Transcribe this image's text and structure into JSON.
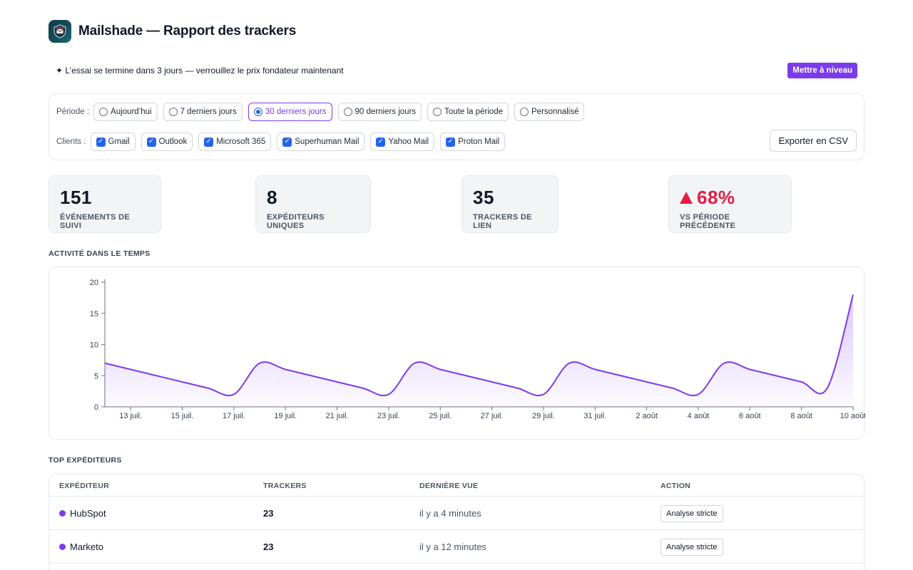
{
  "header": {
    "title": "Mailshade — Rapport des trackers",
    "logo_icon": "shield-envelope-icon"
  },
  "banner": {
    "text": "✦ L’essai se termine dans 3 jours — verrouillez le prix fondateur maintenant",
    "upgrade_label": "Mettre à niveau",
    "accent": "#7c3aed"
  },
  "filters": {
    "period_label": "Période :",
    "periods": [
      {
        "label": "Aujourd’hui",
        "selected": false
      },
      {
        "label": "7 derniers jours",
        "selected": false
      },
      {
        "label": "30 derniers jours",
        "selected": true
      },
      {
        "label": "90 derniers jours",
        "selected": false
      },
      {
        "label": "Toute la période",
        "selected": false
      },
      {
        "label": "Personnalisé",
        "selected": false
      }
    ],
    "clients_label": "Clients :",
    "clients": [
      {
        "label": "Gmail",
        "checked": true
      },
      {
        "label": "Outlook",
        "checked": true
      },
      {
        "label": "Microsoft 365",
        "checked": true
      },
      {
        "label": "Superhuman Mail",
        "checked": true
      },
      {
        "label": "Yahoo Mail",
        "checked": true
      },
      {
        "label": "Proton Mail",
        "checked": true
      }
    ],
    "export_label": "Exporter en CSV"
  },
  "stats": [
    {
      "value": "151",
      "label": "ÉVÉNEMENTS DE SUIVI"
    },
    {
      "value": "8",
      "label": "EXPÉDITEURS UNIQUES"
    },
    {
      "value": "35",
      "label": "TRACKERS DE LIEN"
    },
    {
      "value": "68%",
      "label": "VS PÉRIODE PRÉCÉDENTE",
      "trend": "up",
      "color": "#e11d48"
    }
  ],
  "activity": {
    "title": "ACTIVITÉ DANS LE TEMPS"
  },
  "chart_data": {
    "type": "area",
    "title": "",
    "xlabel": "",
    "ylabel": "",
    "ylim": [
      0,
      20
    ],
    "y_ticks": [
      0,
      5,
      10,
      15,
      20
    ],
    "x_tick_labels": [
      "13 juil.",
      "15 juil.",
      "17 juil.",
      "19 juil.",
      "21 juil.",
      "23 juil.",
      "25 juil.",
      "27 juil.",
      "29 juil.",
      "31 juil.",
      "2 août",
      "4 août",
      "6 août",
      "8 août",
      "10 août"
    ],
    "x": [
      "12 juil.",
      "13 juil.",
      "14 juil.",
      "15 juil.",
      "16 juil.",
      "17 juil.",
      "18 juil.",
      "19 juil.",
      "20 juil.",
      "21 juil.",
      "22 juil.",
      "23 juil.",
      "24 juil.",
      "25 juil.",
      "26 juil.",
      "27 juil.",
      "28 juil.",
      "29 juil.",
      "30 juil.",
      "31 juil.",
      "1 août",
      "2 août",
      "3 août",
      "4 août",
      "5 août",
      "6 août",
      "7 août",
      "8 août",
      "9 août",
      "10 août"
    ],
    "series": [
      {
        "values": [
          7,
          6,
          5,
          4,
          3,
          2,
          7,
          6,
          5,
          4,
          3,
          2,
          7,
          6,
          5,
          4,
          3,
          2,
          7,
          6,
          5,
          4,
          3,
          2,
          7,
          6,
          5,
          4,
          3,
          18
        ]
      }
    ],
    "color": "#7c3aed",
    "grid": false
  },
  "top_senders": {
    "title": "TOP EXPÉDITEURS",
    "columns": [
      "EXPÉDITEUR",
      "TRACKERS",
      "DERNIÈRE VUE",
      "ACTION"
    ],
    "rows": [
      {
        "sender": "HubSpot",
        "trackers": "23",
        "last_seen": "il y a 4 minutes",
        "action": "Analyse stricte"
      },
      {
        "sender": "Marketo",
        "trackers": "23",
        "last_seen": "il y a 12 minutes",
        "action": "Analyse stricte"
      },
      {
        "sender": "",
        "trackers": "",
        "last_seen": "",
        "action": ""
      }
    ]
  }
}
